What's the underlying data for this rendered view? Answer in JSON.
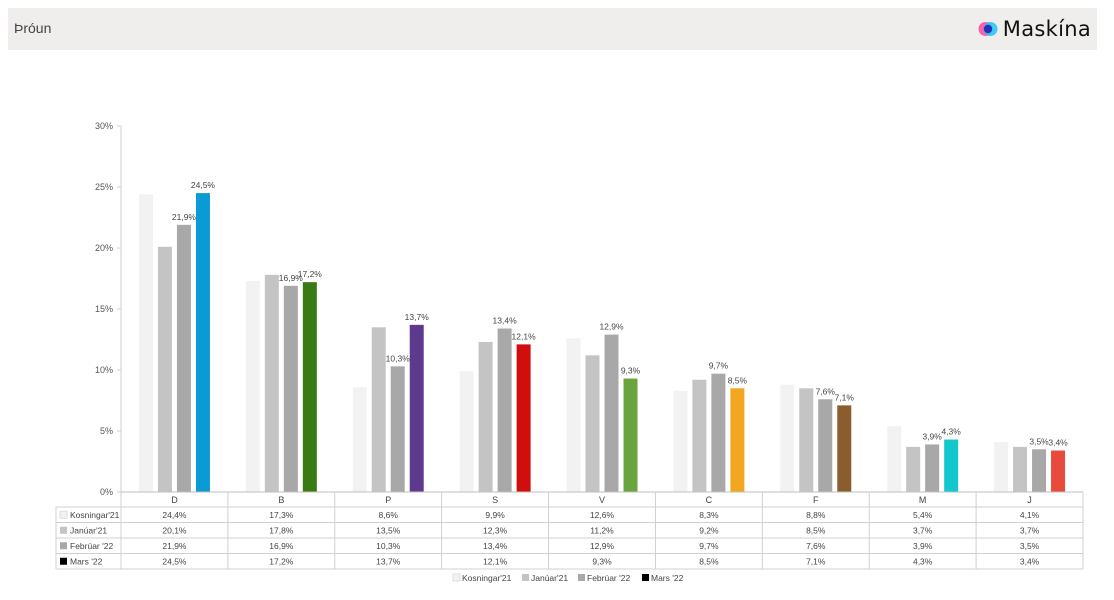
{
  "header": {
    "title": "Þróun",
    "logo_text": "Maskína"
  },
  "chart_data": {
    "type": "bar",
    "categories": [
      "D",
      "B",
      "P",
      "S",
      "V",
      "C",
      "F",
      "M",
      "J"
    ],
    "ylim": [
      0,
      30
    ],
    "yticks": [
      "0%",
      "5%",
      "10%",
      "15%",
      "20%",
      "25%",
      "30%"
    ],
    "grid": false,
    "legend_position": "bottom",
    "series": [
      {
        "name": "Kosningar'21",
        "color": "#f2f2f2",
        "values": [
          24.4,
          17.3,
          8.6,
          9.9,
          12.6,
          8.3,
          8.8,
          5.4,
          4.1
        ],
        "table": [
          "24,4%",
          "17,3%",
          "8,6%",
          "9,9%",
          "12,6%",
          "8,3%",
          "8,8%",
          "5,4%",
          "4,1%"
        ]
      },
      {
        "name": "Janúar'21",
        "color": "#c4c4c4",
        "values": [
          20.1,
          17.8,
          13.5,
          12.3,
          11.2,
          9.2,
          8.5,
          3.7,
          3.7
        ],
        "table": [
          "20,1%",
          "17,8%",
          "13,5%",
          "12,3%",
          "11,2%",
          "9,2%",
          "8,5%",
          "3,7%",
          "3,7%"
        ]
      },
      {
        "name": "Febrúar '22",
        "color": "#a8a8a8",
        "values": [
          21.9,
          16.9,
          10.3,
          13.4,
          12.9,
          9.7,
          7.6,
          3.9,
          3.5
        ],
        "table": [
          "21,9%",
          "16,9%",
          "10,3%",
          "13,4%",
          "12,9%",
          "9,7%",
          "7,6%",
          "3,9%",
          "3,5%"
        ],
        "labels": [
          "21,9%",
          "16,9%",
          "10,3%",
          "13,4%",
          "12,9%",
          "9,7%",
          "7,6%",
          "3,9%",
          "3,5%"
        ]
      },
      {
        "name": "Mars '22",
        "color": "#000000",
        "values": [
          24.5,
          17.2,
          13.7,
          12.1,
          9.3,
          8.5,
          7.1,
          4.3,
          3.4
        ],
        "table": [
          "24,5%",
          "17,2%",
          "13,7%",
          "12,1%",
          "9,3%",
          "8,5%",
          "7,1%",
          "4,3%",
          "3,4%"
        ],
        "labels": [
          "24,5%",
          "17,2%",
          "13,7%",
          "12,1%",
          "9,3%",
          "8,5%",
          "7,1%",
          "4,3%",
          "3,4%"
        ],
        "bar_colors": [
          "#0a9bd4",
          "#3a7a12",
          "#5e3a8f",
          "#d10d0d",
          "#6aa43e",
          "#f3a61f",
          "#8b5d2e",
          "#13c7cc",
          "#e84a3b"
        ]
      }
    ]
  }
}
